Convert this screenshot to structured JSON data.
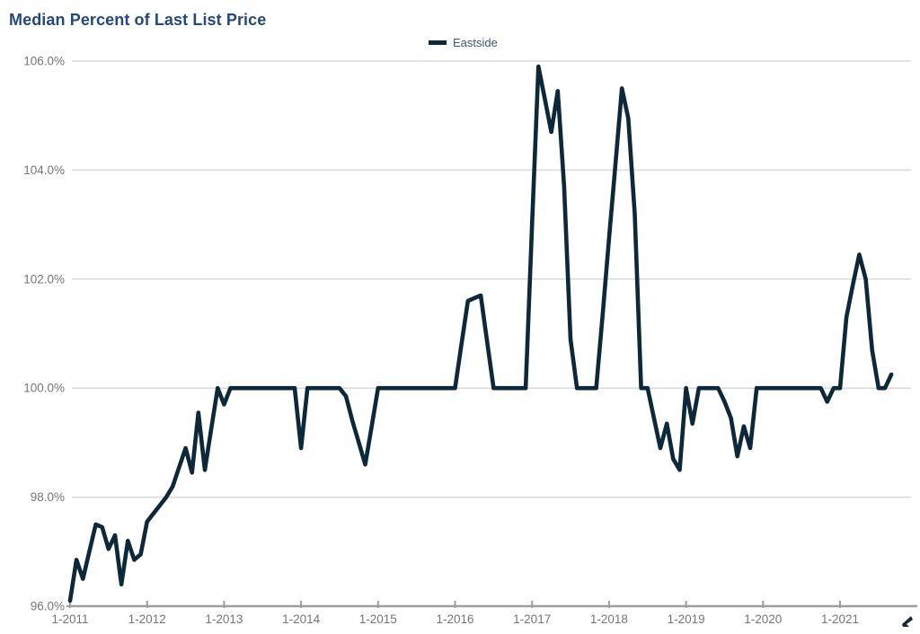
{
  "title": {
    "text": "Median Percent of Last List Price",
    "color": "#234A7B"
  },
  "legend": {
    "label": "Eastside",
    "swatch_color": "#0D2838",
    "text_color": "#44546A"
  },
  "axes": {
    "tick_label_color": "#757575",
    "grid_color": "#D9D9D9",
    "axis_line_color": "#9E9E9E"
  },
  "chart_data": {
    "type": "line",
    "title": "Median Percent of Last List Price",
    "xlabel": "",
    "ylabel": "",
    "x_start": "Jan 2011",
    "x_frequency": "monthly",
    "x_tick_labels": [
      "1-2011",
      "1-2012",
      "1-2013",
      "1-2014",
      "1-2015",
      "1-2016",
      "1-2017",
      "1-2018",
      "1-2019",
      "1-2020",
      "1-2021"
    ],
    "y_tick_labels": [
      "106.0%",
      "104.0%",
      "102.0%",
      "100.0%",
      "98.0%",
      "96.0%"
    ],
    "ylim": [
      96.0,
      106.0
    ],
    "y_unit": "%",
    "grid": "horizontal",
    "legend_position": "top-center",
    "series": [
      {
        "name": "Eastside",
        "color": "#0D2838",
        "values": [
          96.1,
          96.85,
          96.5,
          97.0,
          97.5,
          97.45,
          97.05,
          97.3,
          96.4,
          97.2,
          96.85,
          96.95,
          97.55,
          97.7,
          97.85,
          98.0,
          98.2,
          98.55,
          98.9,
          98.45,
          99.55,
          98.5,
          99.25,
          100.0,
          99.7,
          100,
          100,
          100,
          100,
          100,
          100,
          100,
          100,
          100,
          100,
          100,
          98.9,
          100,
          100,
          100,
          100,
          100,
          100,
          99.85,
          99.4,
          99.0,
          98.6,
          99.3,
          100,
          100,
          100,
          100,
          100,
          100,
          100,
          100,
          100,
          100,
          100,
          100,
          100,
          100.8,
          101.6,
          101.65,
          101.7,
          100.85,
          100,
          100,
          100,
          100,
          100,
          100,
          103.0,
          105.9,
          105.3,
          104.7,
          105.45,
          103.7,
          100.9,
          100,
          100,
          100,
          100,
          101.35,
          102.75,
          104.1,
          105.5,
          104.95,
          103.2,
          100,
          100,
          99.45,
          98.9,
          99.35,
          98.7,
          98.5,
          100,
          99.35,
          100,
          100,
          100,
          100,
          99.75,
          99.45,
          98.75,
          99.3,
          98.9,
          100,
          100,
          100,
          100,
          100,
          100,
          100,
          100,
          100,
          100,
          100,
          99.75,
          100,
          100,
          101.3,
          101.9,
          102.45,
          102.0,
          100.7,
          100,
          100,
          100.25
        ]
      }
    ]
  }
}
